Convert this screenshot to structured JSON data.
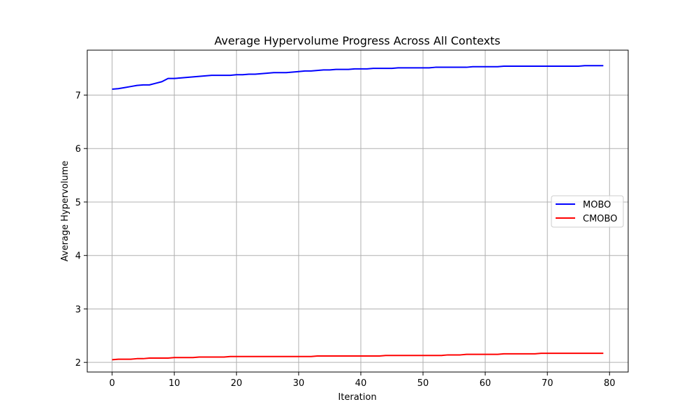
{
  "chart_data": {
    "type": "line",
    "title": "Average Hypervolume Progress Across All Contexts",
    "xlabel": "Iteration",
    "ylabel": "Average Hypervolume",
    "xlim": [
      -4,
      83
    ],
    "ylim": [
      1.82,
      7.84
    ],
    "xticks": [
      0,
      10,
      20,
      30,
      40,
      50,
      60,
      70,
      80
    ],
    "yticks": [
      2,
      3,
      4,
      5,
      6,
      7
    ],
    "grid": true,
    "legend_position": "center-right",
    "series": [
      {
        "name": "MOBO",
        "color": "#0000ff",
        "x": [
          0,
          1,
          2,
          3,
          4,
          5,
          6,
          7,
          8,
          9,
          10,
          11,
          12,
          13,
          14,
          15,
          16,
          17,
          18,
          19,
          20,
          21,
          22,
          23,
          24,
          25,
          26,
          27,
          28,
          29,
          30,
          31,
          32,
          33,
          34,
          35,
          36,
          37,
          38,
          39,
          40,
          41,
          42,
          43,
          44,
          45,
          46,
          47,
          48,
          49,
          50,
          51,
          52,
          53,
          54,
          55,
          56,
          57,
          58,
          59,
          60,
          61,
          62,
          63,
          64,
          65,
          66,
          67,
          68,
          69,
          70,
          71,
          72,
          73,
          74,
          75,
          76,
          77,
          78,
          79
        ],
        "y": [
          7.11,
          7.12,
          7.14,
          7.16,
          7.18,
          7.19,
          7.19,
          7.22,
          7.25,
          7.31,
          7.31,
          7.32,
          7.33,
          7.34,
          7.35,
          7.36,
          7.37,
          7.37,
          7.37,
          7.37,
          7.38,
          7.38,
          7.39,
          7.39,
          7.4,
          7.41,
          7.42,
          7.42,
          7.42,
          7.43,
          7.44,
          7.45,
          7.45,
          7.46,
          7.47,
          7.47,
          7.48,
          7.48,
          7.48,
          7.49,
          7.49,
          7.49,
          7.5,
          7.5,
          7.5,
          7.5,
          7.51,
          7.51,
          7.51,
          7.51,
          7.51,
          7.51,
          7.52,
          7.52,
          7.52,
          7.52,
          7.52,
          7.52,
          7.53,
          7.53,
          7.53,
          7.53,
          7.53,
          7.54,
          7.54,
          7.54,
          7.54,
          7.54,
          7.54,
          7.54,
          7.54,
          7.54,
          7.54,
          7.54,
          7.54,
          7.54,
          7.55,
          7.55,
          7.55,
          7.55
        ]
      },
      {
        "name": "CMOBO",
        "color": "#ff0000",
        "x": [
          0,
          1,
          2,
          3,
          4,
          5,
          6,
          7,
          8,
          9,
          10,
          11,
          12,
          13,
          14,
          15,
          16,
          17,
          18,
          19,
          20,
          21,
          22,
          23,
          24,
          25,
          26,
          27,
          28,
          29,
          30,
          31,
          32,
          33,
          34,
          35,
          36,
          37,
          38,
          39,
          40,
          41,
          42,
          43,
          44,
          45,
          46,
          47,
          48,
          49,
          50,
          51,
          52,
          53,
          54,
          55,
          56,
          57,
          58,
          59,
          60,
          61,
          62,
          63,
          64,
          65,
          66,
          67,
          68,
          69,
          70,
          71,
          72,
          73,
          74,
          75,
          76,
          77,
          78,
          79
        ],
        "y": [
          2.05,
          2.06,
          2.06,
          2.06,
          2.07,
          2.07,
          2.08,
          2.08,
          2.08,
          2.08,
          2.09,
          2.09,
          2.09,
          2.09,
          2.1,
          2.1,
          2.1,
          2.1,
          2.1,
          2.11,
          2.11,
          2.11,
          2.11,
          2.11,
          2.11,
          2.11,
          2.11,
          2.11,
          2.11,
          2.11,
          2.11,
          2.11,
          2.11,
          2.12,
          2.12,
          2.12,
          2.12,
          2.12,
          2.12,
          2.12,
          2.12,
          2.12,
          2.12,
          2.12,
          2.13,
          2.13,
          2.13,
          2.13,
          2.13,
          2.13,
          2.13,
          2.13,
          2.13,
          2.13,
          2.14,
          2.14,
          2.14,
          2.15,
          2.15,
          2.15,
          2.15,
          2.15,
          2.15,
          2.16,
          2.16,
          2.16,
          2.16,
          2.16,
          2.16,
          2.17,
          2.17,
          2.17,
          2.17,
          2.17,
          2.17,
          2.17,
          2.17,
          2.17,
          2.17,
          2.17
        ]
      }
    ]
  }
}
